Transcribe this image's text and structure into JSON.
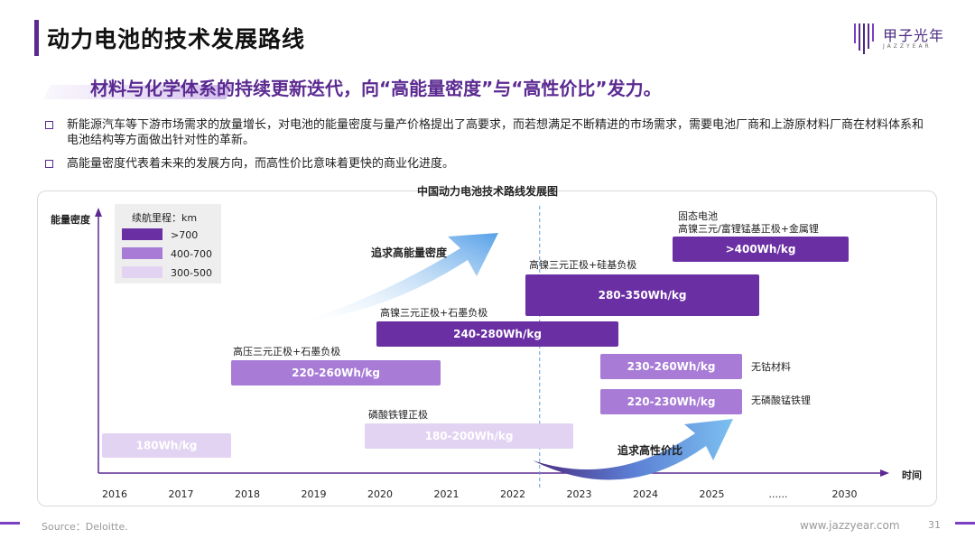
{
  "page": {
    "title": "动力电池的技术发展路线",
    "subtitle": "材料与化学体系的持续更新迭代，向“高能量密度”与“高性价比”发力。",
    "bullets": [
      "新能源汽车等下游市场需求的放量增长，对电池的能量密度与量产价格提出了高要求，而若想满足不断精进的市场需求，需要电池厂商和上游原材料厂商在材料体系和电池结构等方面做出针对性的革新。",
      "高能量密度代表着未来的发展方向，而高性价比意味着更快的商业化进度。"
    ],
    "logo_text": "甲子光年",
    "logo_sub": "JAZZYEAR",
    "source": "Source：Deloitte.",
    "site": "www.jazzyear.com",
    "page_number": "31"
  },
  "chart_data": {
    "type": "bar",
    "title": "中国动力电池技术路线发展图",
    "ylabel": "能量密度",
    "xlabel": "时间",
    "x_ticks": [
      "2016",
      "2017",
      "2018",
      "2019",
      "2020",
      "2021",
      "2022",
      "2023",
      "2024",
      "2025",
      "......",
      "2030"
    ],
    "divider_after": "2022",
    "legend": {
      "title": "续航里程：km",
      "entries": [
        {
          "label": ">700",
          "color": "#6a2fa3"
        },
        {
          "label": "400-700",
          "color": "#a77bd6"
        },
        {
          "label": "300-500",
          "color": "#e2d3f2"
        }
      ]
    },
    "bars": [
      {
        "value": "180Wh/kg",
        "tech": "",
        "start": "2016",
        "end": "2017",
        "range": "300-500"
      },
      {
        "value": "220-260Wh/kg",
        "tech": "高压三元正极+石墨负极",
        "start": "2018",
        "end": "2020",
        "range": "400-700"
      },
      {
        "value": "180-200Wh/kg",
        "tech": "磷酸铁锂正极",
        "start": "2020",
        "end": "2022",
        "range": "300-500"
      },
      {
        "value": "240-280Wh/kg",
        "tech": "高镍三元正极+石墨负极",
        "start": "2020",
        "end": "2023",
        "range": ">700"
      },
      {
        "value": "280-350Wh/kg",
        "tech": "高镍三元正极+硅基负极",
        "start": "2022",
        "end": "2025",
        "range": ">700"
      },
      {
        "value": "230-260Wh/kg",
        "tech": "无钴材料",
        "start": "2023",
        "end": "2025",
        "range": "400-700"
      },
      {
        "value": "220-230Wh/kg",
        "tech": "无磷酸锰铁锂",
        "start": "2023",
        "end": "2025",
        "range": "400-700"
      },
      {
        "value": ">400Wh/kg",
        "tech": "固态电池\n高镍三元/富锂锰基正极+金属锂",
        "start": "2025",
        "end": "2030",
        "range": ">700"
      }
    ],
    "arrows": [
      "追求高能量密度",
      "追求高性价比"
    ]
  }
}
